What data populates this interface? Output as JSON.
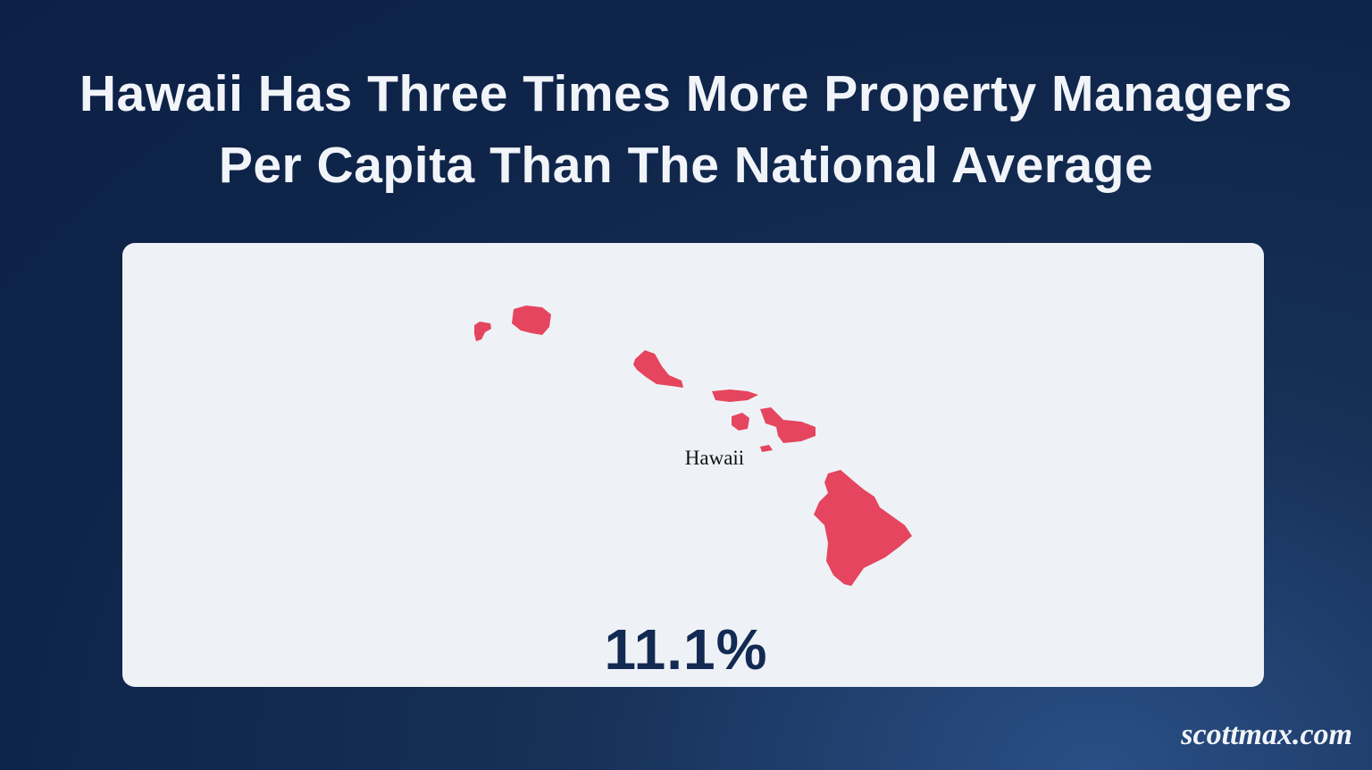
{
  "header": {
    "title_lines": [
      "Hawaii Has Three Times More Property Managers",
      "Per Capita Than The National Average"
    ]
  },
  "map": {
    "label": "Hawaii",
    "stat": "11.1%"
  },
  "footer": {
    "brand": "scottmax.com"
  }
}
